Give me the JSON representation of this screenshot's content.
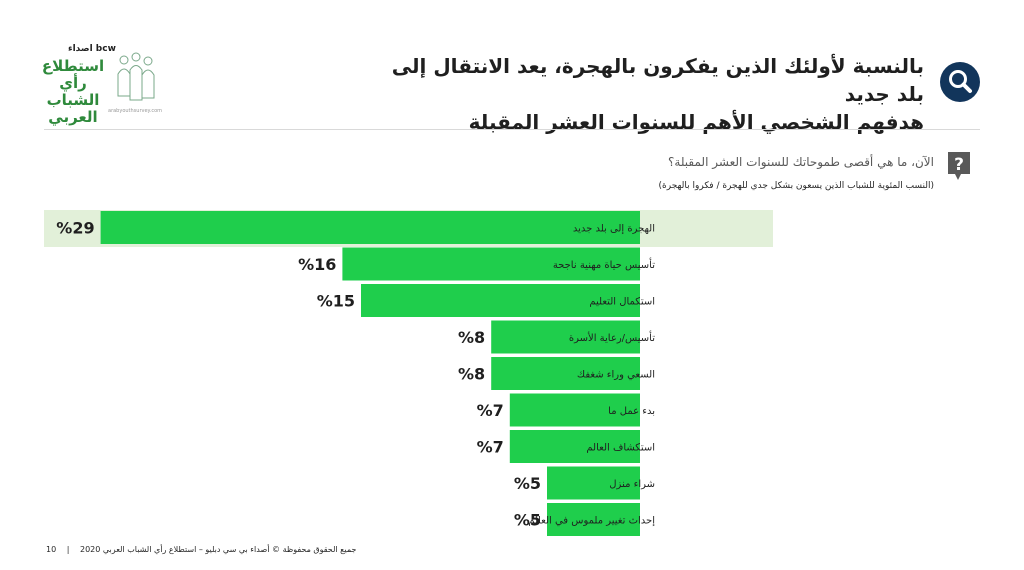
{
  "header": {
    "title_line1": "بالنسبة لأولئك الذين يفكرون بالهجرة، يعد الانتقال إلى بلد جديد",
    "title_line2": "هدفهم الشخصي الأهم للسنوات العشر المقبلة",
    "icon": "magnifier-icon"
  },
  "logo": {
    "brand": "اصداء bcw",
    "name_line1": "استطلاع",
    "name_line2": "رأي الشباب",
    "name_line3": "العربي",
    "url": "arabyouthsurvey.com"
  },
  "question": {
    "icon": "question-bubble-icon",
    "text": "الآن، ما هي أقصى طموحاتك للسنوات العشر المقبلة؟",
    "base": "(النسب المئوية للشباب الذين يسعون بشكل جدي للهجرة / فكروا بالهجرة)"
  },
  "chart_data": {
    "type": "bar",
    "orientation": "horizontal",
    "categories": [
      "الهجرة إلى بلد جديد",
      "تأسيس حياة مهنية ناجحة",
      "استكمال التعليم",
      "تأسيس/رعاية الأسرة",
      "السعي وراء شغفك",
      "بدء عمل ما",
      "استكشاف العالم",
      "شراء منزل",
      "إحداث تغيير ملموس في العالم"
    ],
    "values": [
      29,
      16,
      15,
      8,
      8,
      7,
      7,
      5,
      5
    ],
    "value_labels": [
      "%29",
      "%16",
      "%15",
      "%8",
      "%8",
      "%7",
      "%7",
      "%5",
      "%5"
    ],
    "highlighted_category": "الهجرة إلى بلد جديد",
    "bar_color": "#1fce4c",
    "highlight_color": "#e2f0d9",
    "grid": false,
    "legend": "none"
  },
  "footer": {
    "page_number": "10",
    "copyright": "جميع الحقوق محفوظة © أصداء بي سي دبليو – استطلاع رأي الشباب العربي 2020"
  }
}
